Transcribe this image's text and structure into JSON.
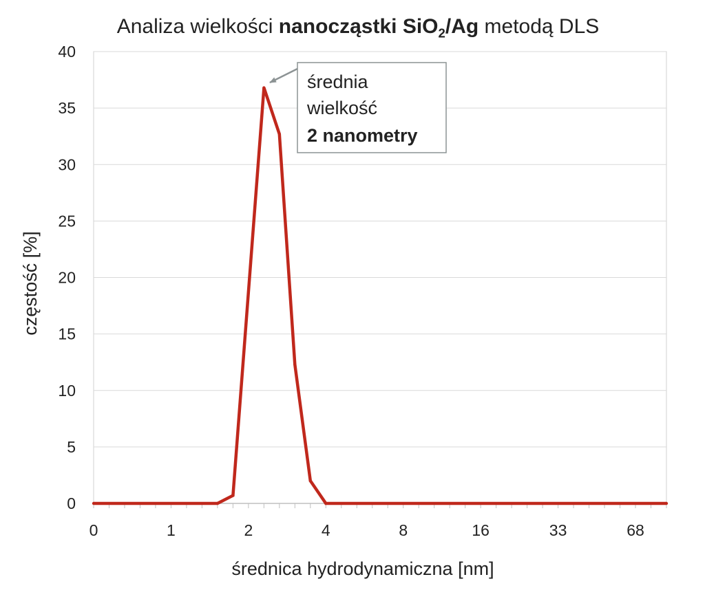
{
  "chart_data": {
    "type": "line",
    "title": {
      "part1": "Analiza wielkości ",
      "bold_part": "nanocząstki SiO",
      "subscript": "2",
      "bold_part2": "/Ag",
      "part3": " metodą DLS"
    },
    "xlabel": "średnica hydrodynamiczna [nm]",
    "ylabel": "częstość [%]",
    "x_tick_labels": [
      "0",
      "1",
      "2",
      "4",
      "8",
      "16",
      "33",
      "68"
    ],
    "y_ticks": [
      0,
      5,
      10,
      15,
      20,
      25,
      30,
      35,
      40
    ],
    "ylim": [
      0,
      40
    ],
    "grid": true,
    "series": [
      {
        "color": "#c0281c",
        "points": [
          {
            "x_index": 0.0,
            "y": 0
          },
          {
            "x_index": 1.6,
            "y": 0
          },
          {
            "x_index": 1.8,
            "y": 0.7
          },
          {
            "x_index": 2.2,
            "y": 36.8
          },
          {
            "x_index": 2.4,
            "y": 32.7
          },
          {
            "x_index": 2.6,
            "y": 12.3
          },
          {
            "x_index": 2.8,
            "y": 2.0
          },
          {
            "x_index": 3.0,
            "y": 0
          },
          {
            "x_index": 7.4,
            "y": 0
          }
        ]
      }
    ],
    "annotation": {
      "line1": "średnia",
      "line2": "wielkość",
      "line3": "2 nanometry",
      "highlight_color": "#c0281c"
    }
  }
}
